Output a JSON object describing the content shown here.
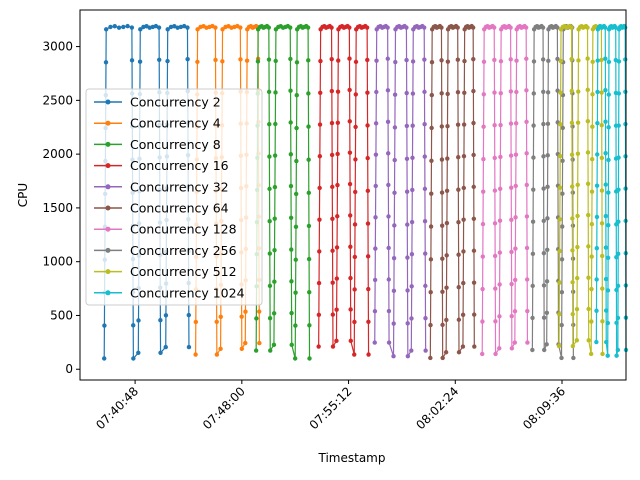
{
  "chart_data": {
    "type": "line",
    "title": "",
    "xlabel": "Timestamp",
    "ylabel": "CPU",
    "x_ticks": [
      "07:40:48",
      "07:48:00",
      "07:55:12",
      "08:02:24",
      "08:09:36"
    ],
    "y_ticks": [
      "0",
      "500",
      "1000",
      "1500",
      "2000",
      "2500",
      "3000"
    ],
    "xlim": [
      "07:37:05",
      "08:13:55"
    ],
    "ylim": [
      -100,
      3340
    ],
    "grid": false,
    "legend_position": "upper-left",
    "pattern_note": "Each series: three runs; each run ramps from ~100 to ~3190 CPU, plateaus, then drops back.",
    "series": [
      {
        "name": "Concurrency 2",
        "color": "#1f77b4",
        "runs": [
          [
            "07:38:43",
            "07:40:41"
          ],
          [
            "07:41:01",
            "07:42:31"
          ],
          [
            "07:42:52",
            "07:44:26"
          ]
        ]
      },
      {
        "name": "Concurrency 4",
        "color": "#ff7f0e",
        "runs": [
          [
            "07:44:53",
            "07:46:19"
          ],
          [
            "07:46:34",
            "07:48:00"
          ],
          [
            "07:48:14",
            "07:49:11"
          ]
        ]
      },
      {
        "name": "Concurrency 8",
        "color": "#2ca02c",
        "runs": [
          [
            "07:48:58",
            "07:49:55"
          ],
          [
            "07:50:10",
            "07:51:22"
          ],
          [
            "07:51:36",
            "07:52:34"
          ]
        ]
      },
      {
        "name": "Concurrency 16",
        "color": "#d62728",
        "runs": [
          [
            "07:53:11",
            "07:54:09"
          ],
          [
            "07:54:23",
            "07:55:21"
          ],
          [
            "07:55:35",
            "07:56:33"
          ]
        ]
      },
      {
        "name": "Concurrency 32",
        "color": "#9467bd",
        "runs": [
          [
            "07:56:58",
            "07:57:56"
          ],
          [
            "07:58:14",
            "07:59:12"
          ],
          [
            "07:59:26",
            "08:00:24"
          ]
        ]
      },
      {
        "name": "Concurrency 64",
        "color": "#8c564b",
        "runs": [
          [
            "08:00:43",
            "08:01:33"
          ],
          [
            "08:01:47",
            "08:02:39"
          ],
          [
            "08:02:55",
            "08:03:41"
          ]
        ]
      },
      {
        "name": "Concurrency 128",
        "color": "#e377c2",
        "runs": [
          [
            "08:04:13",
            "08:05:07"
          ],
          [
            "08:05:22",
            "08:06:13"
          ],
          [
            "08:06:25",
            "08:07:16"
          ]
        ]
      },
      {
        "name": "Concurrency 256",
        "color": "#7f7f7f",
        "runs": [
          [
            "08:07:36",
            "08:08:24"
          ],
          [
            "08:08:34",
            "08:09:22"
          ],
          [
            "08:09:34",
            "08:10:22"
          ]
        ]
      },
      {
        "name": "Concurrency 512",
        "color": "#bcbd22",
        "runs": [
          [
            "08:09:24",
            "08:10:20"
          ],
          [
            "08:10:36",
            "08:11:24"
          ],
          [
            "08:11:34",
            "08:12:20"
          ]
        ]
      },
      {
        "name": "Concurrency 1024",
        "color": "#17becf",
        "runs": [
          [
            "08:11:55",
            "08:12:35"
          ],
          [
            "08:12:41",
            "08:13:17"
          ],
          [
            "08:13:22",
            "08:13:55"
          ]
        ]
      }
    ]
  }
}
